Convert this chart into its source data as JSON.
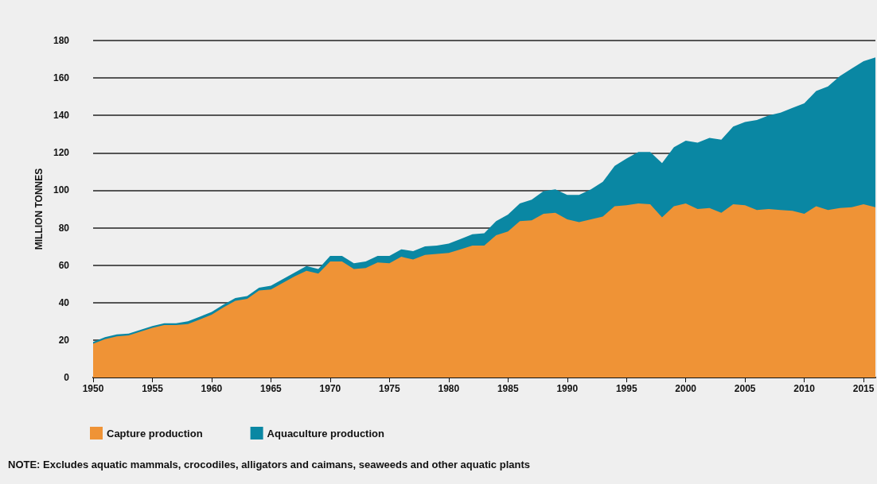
{
  "chart_data": {
    "type": "area",
    "ylabel": "MILLION TONNES",
    "stacked": true,
    "grid": "y",
    "legend": "bottom left",
    "x": [
      1950,
      1951,
      1952,
      1953,
      1954,
      1955,
      1956,
      1957,
      1958,
      1959,
      1960,
      1961,
      1962,
      1963,
      1964,
      1965,
      1966,
      1967,
      1968,
      1969,
      1970,
      1971,
      1972,
      1973,
      1974,
      1975,
      1976,
      1977,
      1978,
      1979,
      1980,
      1981,
      1982,
      1983,
      1984,
      1985,
      1986,
      1987,
      1988,
      1989,
      1990,
      1991,
      1992,
      1993,
      1994,
      1995,
      1996,
      1997,
      1998,
      1999,
      2000,
      2001,
      2002,
      2003,
      2004,
      2005,
      2006,
      2007,
      2008,
      2009,
      2010,
      2011,
      2012,
      2013,
      2014,
      2015,
      2016
    ],
    "series": [
      {
        "name": "Capture production",
        "color": "#ef9336",
        "values": [
          18,
          20.5,
          22,
          22.5,
          24.5,
          26.5,
          28,
          28,
          28.5,
          31,
          33.5,
          37.5,
          41,
          42,
          46.5,
          47,
          50.5,
          54,
          57,
          55.5,
          62,
          62,
          58,
          58.5,
          61.5,
          61,
          64.5,
          63,
          65.5,
          66,
          66.5,
          68.5,
          70.5,
          70.5,
          76,
          78,
          83.5,
          84,
          87.5,
          88,
          84.5,
          83,
          84.5,
          86,
          91.5,
          92,
          93,
          92.5,
          85.5,
          91.5,
          93,
          90,
          90.5,
          88,
          92.5,
          92,
          89.5,
          90,
          89.5,
          89,
          87.5,
          91.5,
          89.5,
          90.5,
          91,
          92.5,
          91
        ]
      },
      {
        "name": "Aquaculture production",
        "color": "#0a87a3",
        "values": [
          1,
          1,
          1,
          1,
          1,
          1,
          1,
          1,
          1.5,
          1.5,
          1.5,
          1.5,
          1.5,
          1.5,
          1.5,
          2,
          2,
          2,
          2.5,
          2.5,
          3,
          3,
          3,
          3.5,
          3.5,
          4,
          4,
          4.5,
          4.5,
          4.5,
          5,
          5.5,
          6,
          6.5,
          7.5,
          9,
          9.5,
          11,
          12,
          12.5,
          13,
          14.5,
          16,
          18.5,
          21.5,
          25,
          27.5,
          28,
          29,
          31.5,
          33.5,
          35.5,
          37.5,
          39,
          41.5,
          44.5,
          48,
          50,
          52,
          55,
          59,
          61.5,
          66,
          70.5,
          74,
          76.5,
          80
        ]
      }
    ],
    "xlim": [
      1950,
      2016
    ],
    "xticks": [
      1950,
      1955,
      1960,
      1965,
      1970,
      1975,
      1980,
      1985,
      1990,
      1995,
      2000,
      2005,
      2010,
      2015
    ],
    "ylim": [
      0,
      180
    ],
    "yticks": [
      0,
      20,
      40,
      60,
      80,
      100,
      120,
      140,
      160,
      180
    ],
    "annotations": [
      "NOTE: Excludes aquatic mammals, crocodiles, alligators and caimans, seaweeds and other aquatic plants"
    ]
  }
}
